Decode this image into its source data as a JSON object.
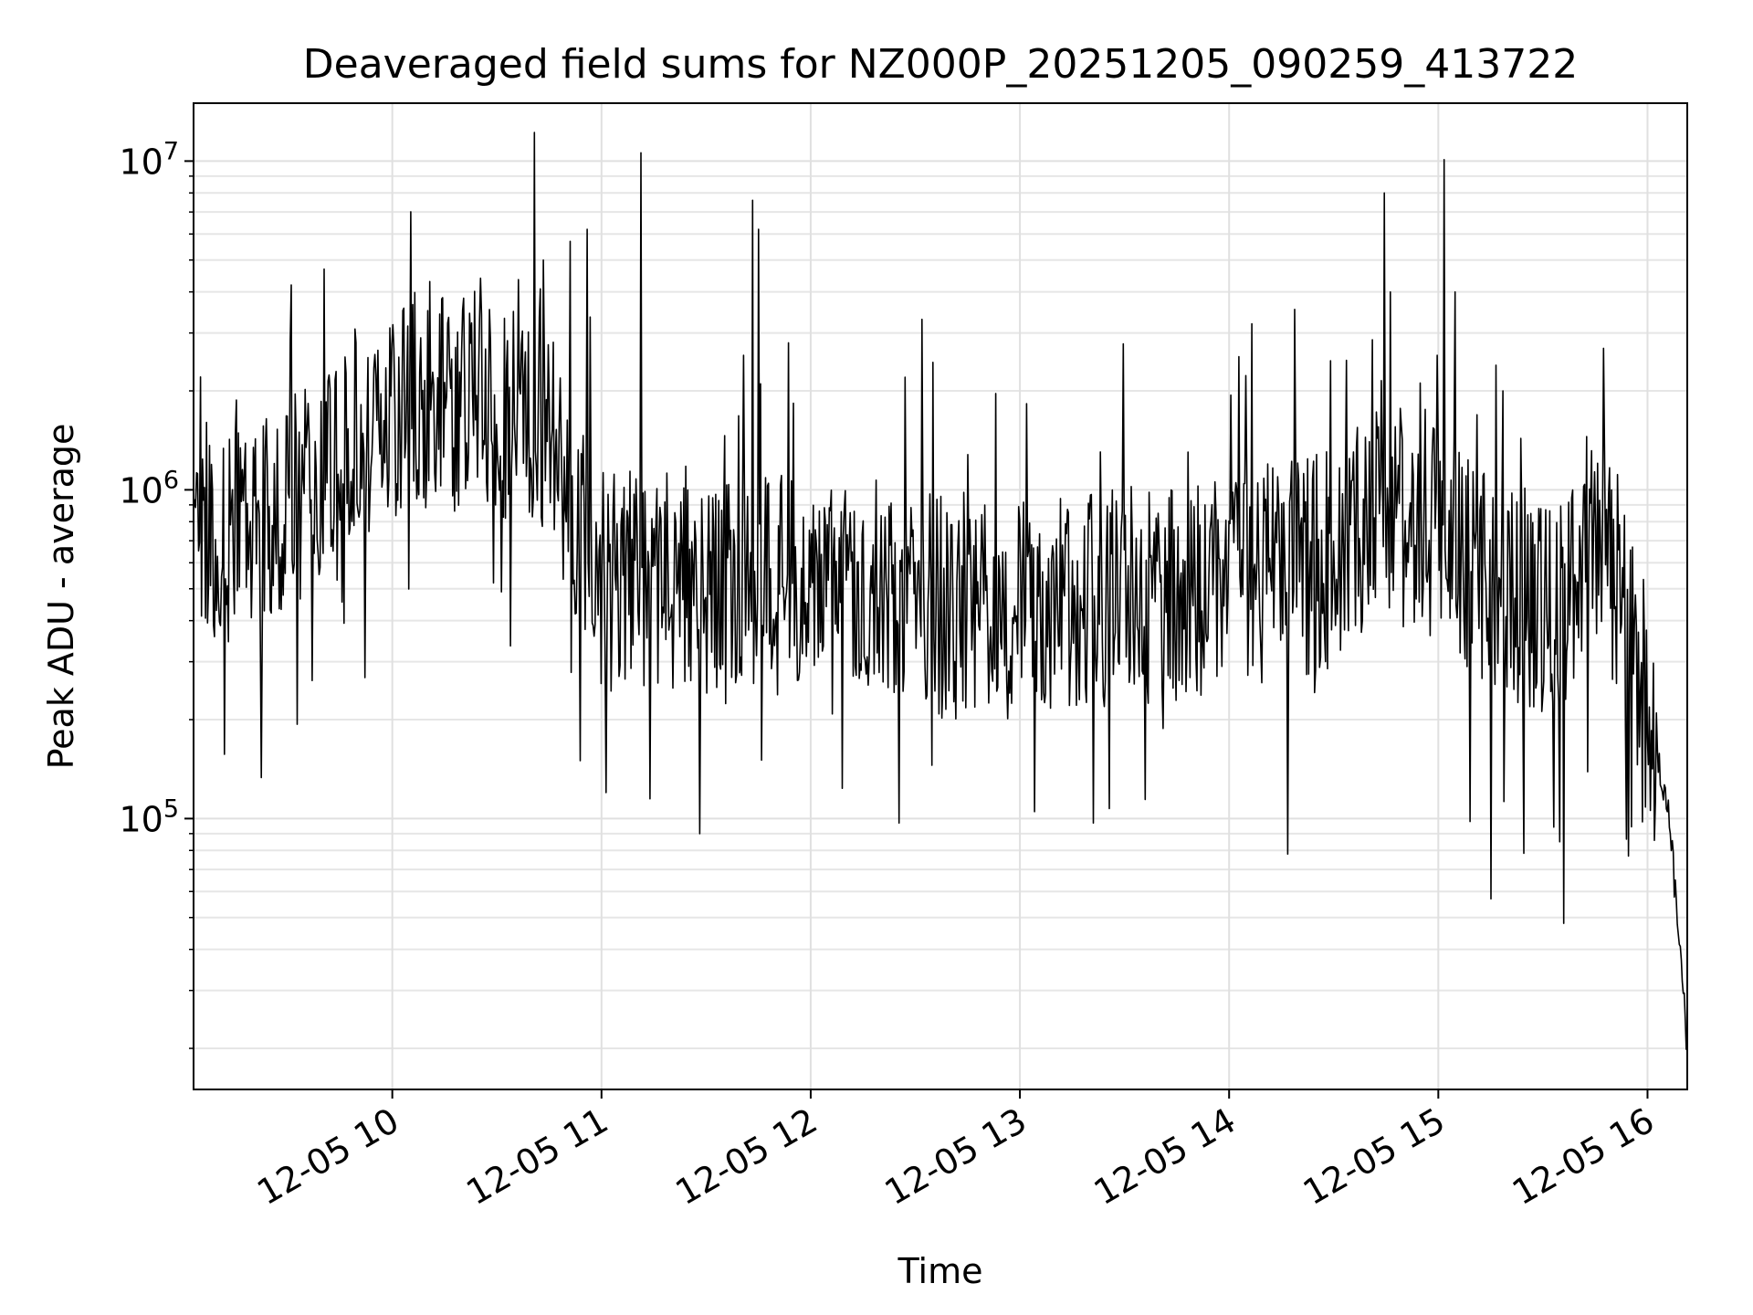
{
  "chart_data": {
    "type": "line",
    "title": "Deaveraged field sums for NZ000P_20251205_090259_413722",
    "xlabel": "Time",
    "ylabel": "Peak ADU - average",
    "yscale": "log",
    "ylim": [
      15000,
      15000000
    ],
    "xlim_hours": [
      9.05,
      16.19
    ],
    "grid": true,
    "line_color": "#000000",
    "x_ticks": [
      {
        "hour": 10,
        "label": "12-05 10"
      },
      {
        "hour": 11,
        "label": "12-05 11"
      },
      {
        "hour": 12,
        "label": "12-05 12"
      },
      {
        "hour": 13,
        "label": "12-05 13"
      },
      {
        "hour": 14,
        "label": "12-05 14"
      },
      {
        "hour": 15,
        "label": "12-05 15"
      },
      {
        "hour": 16,
        "label": "12-05 16"
      }
    ],
    "y_ticks": [
      {
        "value": 100000,
        "base": "10",
        "exp": "5"
      },
      {
        "value": 1000000,
        "base": "10",
        "exp": "6"
      },
      {
        "value": 10000000,
        "base": "10",
        "exp": "7"
      }
    ],
    "series": [
      {
        "name": "field sums",
        "baseline": [
          [
            9.05,
            700000
          ],
          [
            9.3,
            750000
          ],
          [
            9.5,
            850000
          ],
          [
            9.75,
            1400000
          ],
          [
            10.0,
            1800000
          ],
          [
            10.2,
            1900000
          ],
          [
            10.5,
            1800000
          ],
          [
            10.75,
            1600000
          ],
          [
            10.9,
            700000
          ],
          [
            11.0,
            550000
          ],
          [
            11.5,
            500000
          ],
          [
            12.0,
            580000
          ],
          [
            12.5,
            450000
          ],
          [
            13.0,
            420000
          ],
          [
            13.5,
            480000
          ],
          [
            14.0,
            520000
          ],
          [
            14.5,
            620000
          ],
          [
            14.75,
            900000
          ],
          [
            15.0,
            800000
          ],
          [
            15.2,
            550000
          ],
          [
            15.5,
            400000
          ],
          [
            15.75,
            650000
          ],
          [
            15.85,
            550000
          ],
          [
            16.0,
            220000
          ],
          [
            16.1,
            110000
          ],
          [
            16.19,
            20000
          ]
        ],
        "spikes": [
          [
            10.18,
            4300000
          ],
          [
            10.42,
            4400000
          ],
          [
            10.72,
            5000000
          ],
          [
            10.85,
            5700000
          ],
          [
            10.93,
            6200000
          ],
          [
            11.19,
            10600000
          ],
          [
            11.72,
            7600000
          ],
          [
            11.75,
            6200000
          ],
          [
            12.53,
            3300000
          ],
          [
            12.45,
            2200000
          ],
          [
            14.74,
            8000000
          ],
          [
            14.77,
            4000000
          ],
          [
            15.03,
            10100000
          ],
          [
            15.08,
            4000000
          ],
          [
            15.31,
            2000000
          ],
          [
            10.8,
            1600000
          ]
        ],
        "dips": [
          [
            11.47,
            90000
          ],
          [
            12.42,
            97000
          ],
          [
            13.07,
            105000
          ],
          [
            13.35,
            97000
          ],
          [
            14.28,
            78000
          ],
          [
            15.25,
            57000
          ],
          [
            15.6,
            48000
          ],
          [
            10.9,
            150000
          ],
          [
            11.02,
            120000
          ],
          [
            15.15,
            98000
          ],
          [
            15.58,
            85000
          ]
        ]
      }
    ]
  }
}
